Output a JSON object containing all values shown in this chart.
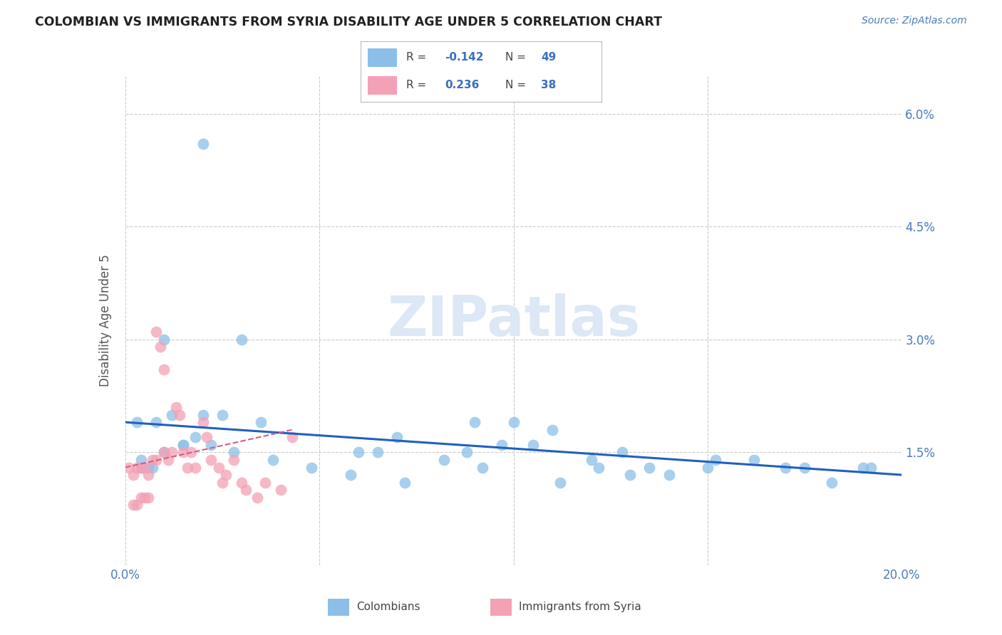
{
  "title": "COLOMBIAN VS IMMIGRANTS FROM SYRIA DISABILITY AGE UNDER 5 CORRELATION CHART",
  "source": "Source: ZipAtlas.com",
  "ylabel": "Disability Age Under 5",
  "xlim": [
    0.0,
    0.2
  ],
  "ylim": [
    0.0,
    0.065
  ],
  "yticks": [
    0.0,
    0.015,
    0.03,
    0.045,
    0.06
  ],
  "ytick_labels": [
    "",
    "1.5%",
    "3.0%",
    "4.5%",
    "6.0%"
  ],
  "xticks": [
    0.0,
    0.05,
    0.1,
    0.15,
    0.2
  ],
  "xtick_labels": [
    "0.0%",
    "",
    "",
    "",
    "20.0%"
  ],
  "blue_R": -0.142,
  "blue_N": 49,
  "pink_R": 0.236,
  "pink_N": 38,
  "blue_color": "#8bbfe8",
  "pink_color": "#f4a0b5",
  "trendline_blue_color": "#2060c0",
  "trendline_pink_color": "#d06080",
  "grid_color": "#cccccc",
  "watermark": "ZIPatlas",
  "watermark_color": "#dce8f5",
  "blue_scatter_x": [
    0.02,
    0.01,
    0.003,
    0.004,
    0.006,
    0.008,
    0.012,
    0.015,
    0.02,
    0.025,
    0.03,
    0.035,
    0.06,
    0.07,
    0.09,
    0.1,
    0.11,
    0.12,
    0.13,
    0.14,
    0.15,
    0.17,
    0.19,
    0.004,
    0.007,
    0.01,
    0.015,
    0.018,
    0.022,
    0.028,
    0.038,
    0.048,
    0.058,
    0.065,
    0.072,
    0.082,
    0.088,
    0.092,
    0.097,
    0.105,
    0.112,
    0.122,
    0.128,
    0.135,
    0.152,
    0.162,
    0.175,
    0.182,
    0.192
  ],
  "blue_scatter_y": [
    0.056,
    0.03,
    0.019,
    0.014,
    0.013,
    0.019,
    0.02,
    0.016,
    0.02,
    0.02,
    0.03,
    0.019,
    0.015,
    0.017,
    0.019,
    0.019,
    0.018,
    0.014,
    0.012,
    0.012,
    0.013,
    0.013,
    0.013,
    0.013,
    0.013,
    0.015,
    0.016,
    0.017,
    0.016,
    0.015,
    0.014,
    0.013,
    0.012,
    0.015,
    0.011,
    0.014,
    0.015,
    0.013,
    0.016,
    0.016,
    0.011,
    0.013,
    0.015,
    0.013,
    0.014,
    0.014,
    0.013,
    0.011,
    0.013
  ],
  "pink_scatter_x": [
    0.001,
    0.002,
    0.002,
    0.003,
    0.003,
    0.004,
    0.004,
    0.005,
    0.005,
    0.006,
    0.006,
    0.007,
    0.008,
    0.008,
    0.009,
    0.01,
    0.01,
    0.011,
    0.012,
    0.013,
    0.014,
    0.015,
    0.016,
    0.017,
    0.018,
    0.02,
    0.021,
    0.022,
    0.024,
    0.025,
    0.026,
    0.028,
    0.03,
    0.031,
    0.034,
    0.036,
    0.04,
    0.043
  ],
  "pink_scatter_y": [
    0.013,
    0.012,
    0.008,
    0.013,
    0.008,
    0.013,
    0.009,
    0.013,
    0.009,
    0.012,
    0.009,
    0.014,
    0.031,
    0.014,
    0.029,
    0.026,
    0.015,
    0.014,
    0.015,
    0.021,
    0.02,
    0.015,
    0.013,
    0.015,
    0.013,
    0.019,
    0.017,
    0.014,
    0.013,
    0.011,
    0.012,
    0.014,
    0.011,
    0.01,
    0.009,
    0.011,
    0.01,
    0.017
  ],
  "blue_trendline_x": [
    0.0,
    0.2
  ],
  "blue_trendline_y": [
    0.019,
    0.012
  ],
  "pink_trendline_x": [
    0.0,
    0.043
  ],
  "pink_trendline_y": [
    0.013,
    0.018
  ]
}
